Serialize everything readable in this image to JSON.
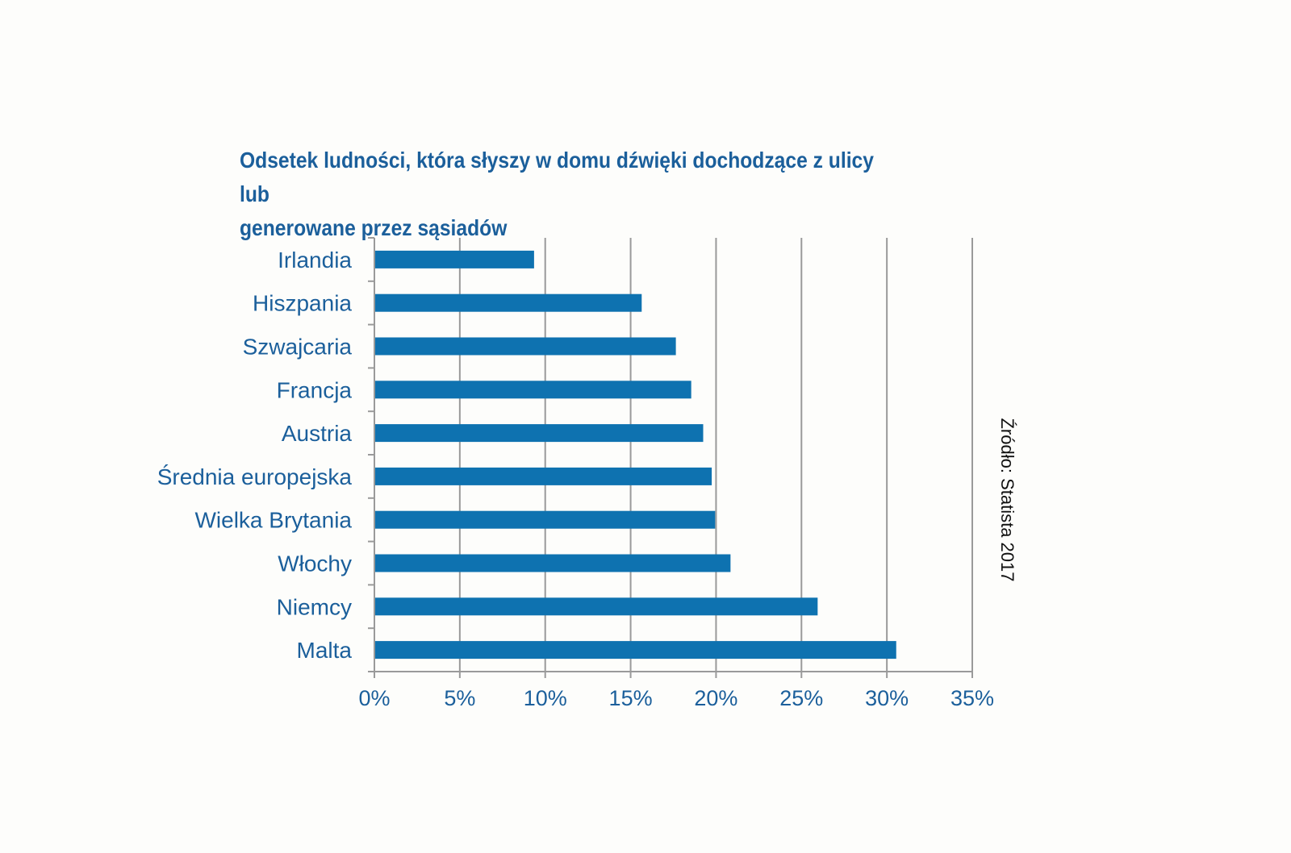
{
  "chart_data": {
    "type": "bar",
    "orientation": "horizontal",
    "title_lines": [
      "Odsetek ludności, która słyszy w domu dźwięki dochodzące z ulicy lub",
      "generowane przez sąsiadów"
    ],
    "categories": [
      "Irlandia",
      "Hiszpania",
      "Szwajcaria",
      "Francja",
      "Austria",
      "Średnia europejska",
      "Wielka Brytania",
      "Włochy",
      "Niemcy",
      "Malta"
    ],
    "values": [
      9.3,
      15.6,
      17.6,
      18.5,
      19.2,
      19.7,
      19.9,
      20.8,
      25.9,
      30.5
    ],
    "xlim": [
      0,
      35
    ],
    "xticks": [
      0,
      5,
      10,
      15,
      20,
      25,
      30,
      35
    ],
    "xtick_labels": [
      "0%",
      "5%",
      "10%",
      "15%",
      "20%",
      "25%",
      "30%",
      "35%"
    ],
    "grid": "vertical",
    "bar_color": "#0e72b0",
    "grid_color": "#9a9a9a",
    "text_color": "#1b5f9b"
  },
  "source_note": "Źródło: Statista 2017"
}
